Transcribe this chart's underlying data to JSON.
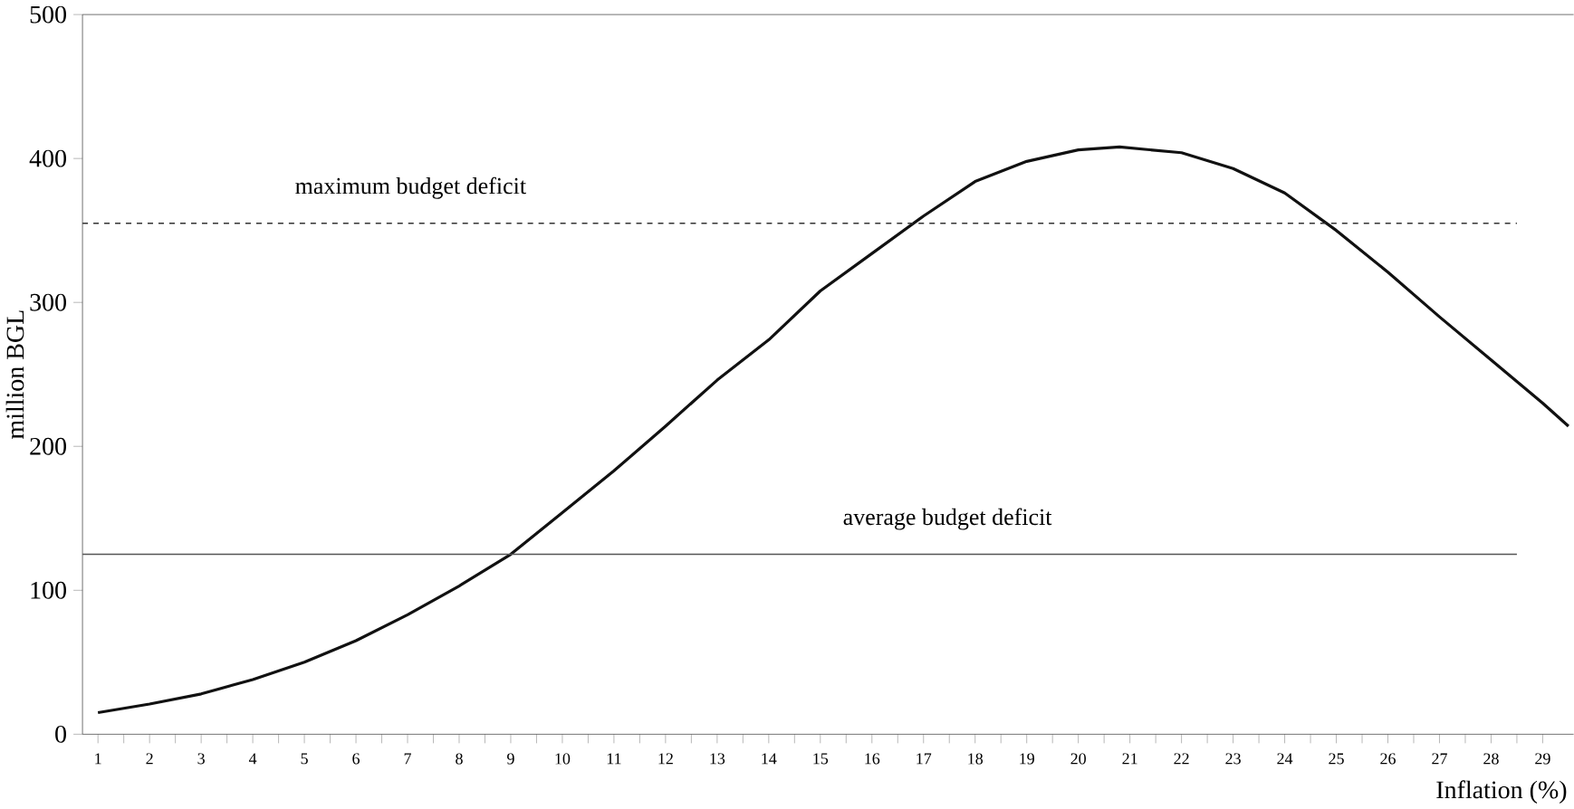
{
  "chart_data": {
    "type": "line",
    "xlabel": "Inflation (%)",
    "ylabel": "million BGL",
    "x": [
      1,
      2,
      3,
      4,
      5,
      6,
      7,
      8,
      9,
      10,
      11,
      12,
      13,
      14,
      15,
      16,
      17,
      18,
      19,
      20,
      20.8,
      22,
      23,
      24,
      25,
      26,
      27,
      28,
      29,
      29.5
    ],
    "series": [
      {
        "color": "#111111",
        "values": [
          15,
          21,
          28,
          38,
          50,
          65,
          83,
          103,
          125,
          154,
          183,
          214,
          246,
          274,
          308,
          334,
          360,
          384,
          398,
          406,
          408,
          404,
          393,
          376,
          350,
          321,
          290,
          260,
          230,
          214
        ]
      }
    ],
    "xlim": [
      0.7,
      29.6
    ],
    "xticks": [
      1,
      2,
      3,
      4,
      5,
      6,
      7,
      8,
      9,
      10,
      11,
      12,
      13,
      14,
      15,
      16,
      17,
      18,
      19,
      20,
      21,
      22,
      23,
      24,
      25,
      26,
      27,
      28,
      29
    ],
    "ylim": [
      0,
      500
    ],
    "yticks": [
      0,
      100,
      200,
      300,
      400,
      500
    ],
    "ref_lines": [
      {
        "axis": "y",
        "value": 355,
        "label": "maximum budget deficit",
        "color": "#333333",
        "line_style": "dashed"
      },
      {
        "axis": "y",
        "value": 125,
        "label": "average budget deficit",
        "color": "#555555",
        "line_style": "solid"
      }
    ],
    "grid": false,
    "marker": "none",
    "line_style": "solid"
  }
}
